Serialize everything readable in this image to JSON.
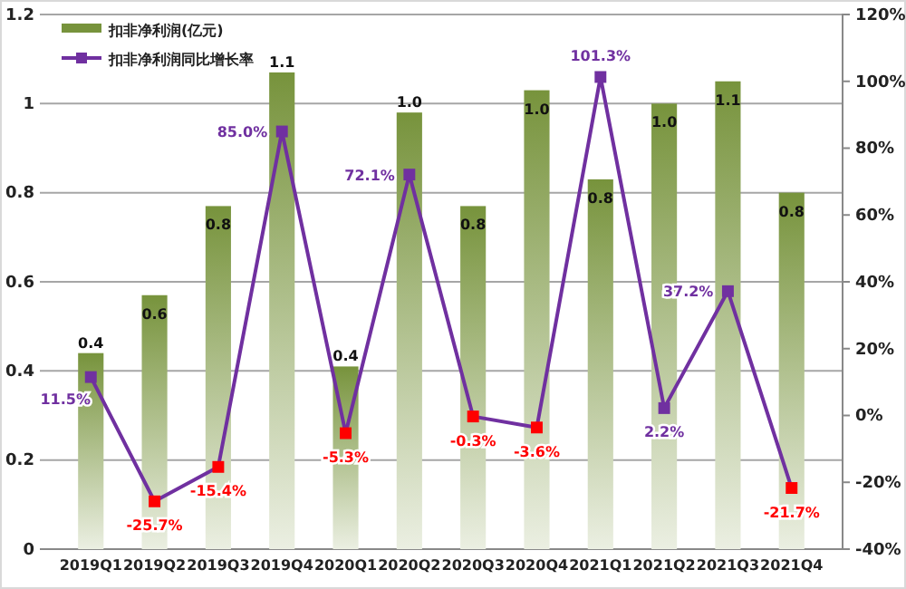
{
  "chart_data": {
    "type": "bar",
    "categories": [
      "2019Q1",
      "2019Q2",
      "2019Q3",
      "2019Q4",
      "2020Q1",
      "2020Q2",
      "2020Q3",
      "2020Q4",
      "2021Q1",
      "2021Q2",
      "2021Q3",
      "2021Q4"
    ],
    "series": [
      {
        "name": "扣非净利润(亿元)",
        "color": "#77933c",
        "values": [
          0.44,
          0.57,
          0.77,
          1.07,
          0.41,
          0.98,
          0.77,
          1.03,
          0.83,
          1.0,
          1.05,
          0.8
        ],
        "value_labels": [
          "0.4",
          "0.6",
          "0.8",
          "1.1",
          "0.4",
          "1.0",
          "0.8",
          "1.0",
          "0.8",
          "1.0",
          "1.1",
          "0.8"
        ]
      },
      {
        "name": "扣非净利润同比增长率",
        "type": "line",
        "axis": "y2",
        "color": "#7030a0",
        "marker": "square",
        "colors": [
          "#7030a0",
          "#ff0000",
          "#ff0000",
          "#7030a0",
          "#ff0000",
          "#7030a0",
          "#ff0000",
          "#ff0000",
          "#7030a0",
          "#7030a0",
          "#7030a0",
          "#ff0000"
        ],
        "values": [
          11.5,
          -25.7,
          -15.4,
          85.0,
          -5.3,
          72.1,
          -0.3,
          -3.6,
          101.3,
          2.2,
          37.2,
          -21.7
        ],
        "value_labels": [
          "11.5%",
          "-25.7%",
          "-15.4%",
          "85.0%",
          "-5.3%",
          "72.1%",
          "-0.3%",
          "-3.6%",
          "101.3%",
          "2.2%",
          "37.2%",
          "-21.7%"
        ]
      }
    ],
    "ylim": [
      0,
      1.2
    ],
    "yticks": [
      0,
      0.2,
      0.4,
      0.6,
      0.8,
      1,
      1.2
    ],
    "y2lim": [
      -40,
      120
    ],
    "y2ticks": [
      {
        "value": -40,
        "label": "-40%"
      },
      {
        "value": -20,
        "label": "-20%"
      },
      {
        "value": 0,
        "label": "0%"
      },
      {
        "value": 20,
        "label": "20%"
      },
      {
        "value": 40,
        "label": "40%"
      },
      {
        "value": 60,
        "label": "60%"
      },
      {
        "value": 80,
        "label": "80%"
      },
      {
        "value": 100,
        "label": "100%"
      },
      {
        "value": 120,
        "label": "120%"
      }
    ],
    "grid": "y",
    "legend": "top left"
  }
}
